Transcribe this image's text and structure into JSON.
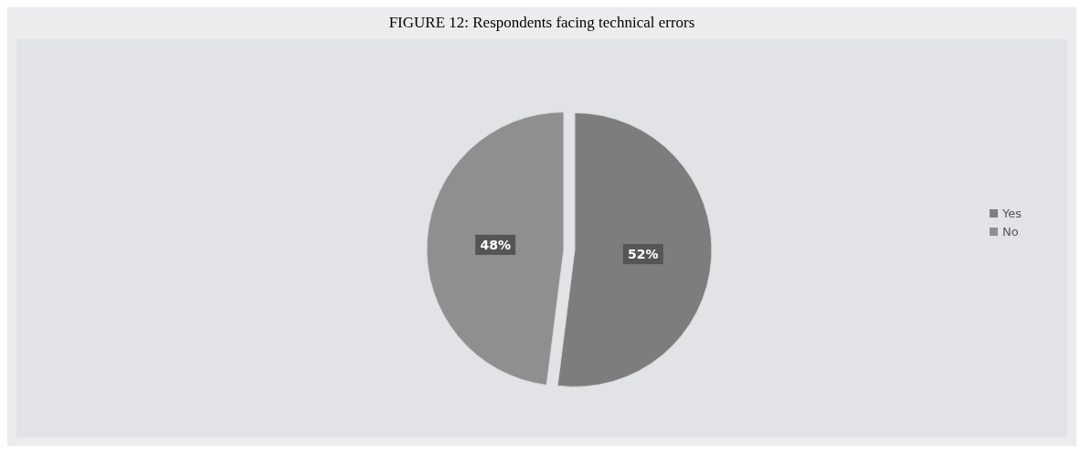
{
  "chart_data": {
    "type": "pie",
    "title": "FIGURE 12: Respondents facing technical errors",
    "categories": [
      "Yes",
      "No"
    ],
    "values": [
      52,
      48
    ],
    "colors": [
      "#7d7d7d",
      "#8f8f8f"
    ],
    "value_labels": [
      "52%",
      "48%"
    ],
    "legend": "right"
  }
}
